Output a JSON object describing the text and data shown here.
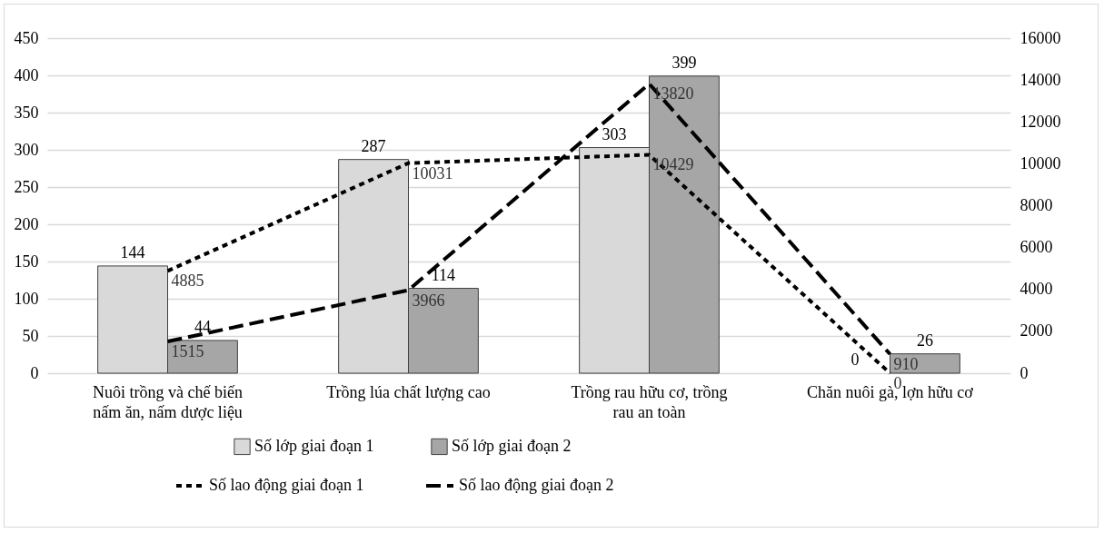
{
  "chart_data": {
    "type": "bar",
    "categories": [
      "Nuôi trồng và chế biến nấm ăn, nấm dược liệu",
      "Trồng lúa chất lượng cao",
      "Trồng rau hữu cơ, trồng rau an toàn",
      "Chăn nuôi gà, lợn hữu cơ"
    ],
    "series": [
      {
        "name": "Số lớp giai đoạn 1",
        "color": "#d9d9d9",
        "values": [
          144,
          287,
          303,
          0
        ]
      },
      {
        "name": "Số lớp giai đoạn 2",
        "color": "#a6a6a6",
        "values": [
          44,
          114,
          399,
          26
        ]
      },
      {
        "name": "Số lao động giai đoạn 1",
        "type": "line",
        "axis": "y2",
        "color": "#000000",
        "line_style": "dotted",
        "values": [
          4885,
          10031,
          10429,
          0
        ]
      },
      {
        "name": "Số lao động giai đoạn 2",
        "type": "line",
        "axis": "y2",
        "color": "#000000",
        "line_style": "dashed",
        "values": [
          1515,
          3966,
          13820,
          910
        ]
      }
    ],
    "ylim": [
      0,
      450
    ],
    "yticks": [
      0,
      50,
      100,
      150,
      200,
      250,
      300,
      350,
      400,
      450
    ],
    "y2lim": [
      0,
      16000
    ],
    "y2ticks": [
      0,
      2000,
      4000,
      6000,
      8000,
      10000,
      12000,
      14000,
      16000
    ],
    "grid": "y",
    "legend": "bottom",
    "data_labels": true,
    "marker": "none"
  }
}
